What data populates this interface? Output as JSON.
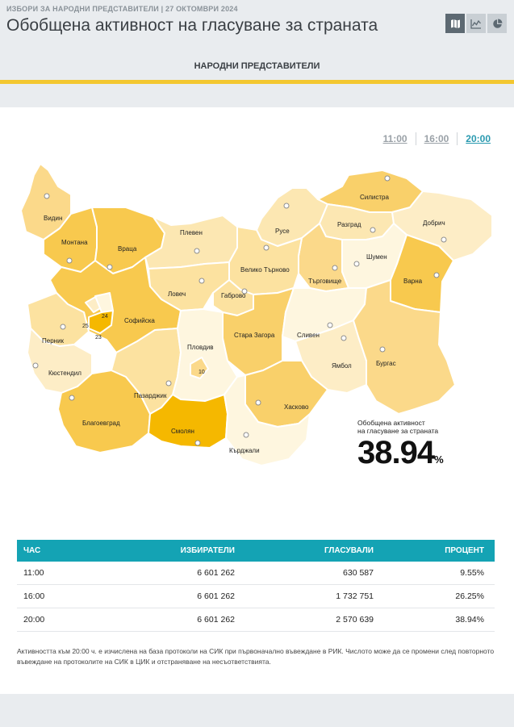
{
  "header": {
    "kicker": "ИЗБОРИ ЗА НАРОДНИ ПРЕДСТАВИТЕЛИ | 27 ОКТОМВРИ 2024",
    "title": "Обобщена активност на гласуване за страната",
    "subnav": "НАРОДНИ ПРЕДСТАВИТЕЛИ",
    "views": [
      "map-icon",
      "line-chart-icon",
      "pie-chart-icon"
    ]
  },
  "time_tabs": [
    "11:00",
    "16:00",
    "20:00"
  ],
  "active_tab": "20:00",
  "map": {
    "regions": [
      {
        "name": "Видин",
        "color": "#fbd98a"
      },
      {
        "name": "Монтана",
        "color": "#f8c94e"
      },
      {
        "name": "Враца",
        "color": "#f8c94e"
      },
      {
        "name": "Плевен",
        "color": "#fce7b2"
      },
      {
        "name": "Русе",
        "color": "#fce7b2"
      },
      {
        "name": "Силистра",
        "color": "#f9d06a"
      },
      {
        "name": "Разград",
        "color": "#fce7b2"
      },
      {
        "name": "Добрич",
        "color": "#fdedc6"
      },
      {
        "name": "Шумен",
        "color": "#fef6df"
      },
      {
        "name": "Варна",
        "color": "#f8c94e"
      },
      {
        "name": "Търговище",
        "color": "#fbd98a"
      },
      {
        "name": "Велико Търново",
        "color": "#fce2a0"
      },
      {
        "name": "Ловеч",
        "color": "#fce2a0"
      },
      {
        "name": "Габрово",
        "color": "#fce2a0"
      },
      {
        "name": "Софийска",
        "color": "#f8c94e"
      },
      {
        "name": "Перник",
        "color": "#fce2a0"
      },
      {
        "name": "Кюстендил",
        "color": "#fdedc6"
      },
      {
        "name": "Благоевград",
        "color": "#f8c94e"
      },
      {
        "name": "Пазарджик",
        "color": "#fce2a0"
      },
      {
        "name": "Пловдив",
        "color": "#fef6df"
      },
      {
        "name": "Стара Загора",
        "color": "#f9d06a"
      },
      {
        "name": "Сливен",
        "color": "#fef6df"
      },
      {
        "name": "Ямбол",
        "color": "#fdedc6"
      },
      {
        "name": "Бургас",
        "color": "#fbd98a"
      },
      {
        "name": "Хасково",
        "color": "#f9d06a"
      },
      {
        "name": "Смолян",
        "color": "#f5b800"
      },
      {
        "name": "Кърджали",
        "color": "#fef6df"
      }
    ],
    "city_labels": [
      "25",
      "24",
      "23",
      "10"
    ]
  },
  "summary": {
    "label_line1": "Обобщена активност",
    "label_line2": "на гласуване за страната",
    "value": "38.94",
    "unit": "%"
  },
  "table": {
    "headers": [
      "ЧАС",
      "ИЗБИРАТЕЛИ",
      "ГЛАСУВАЛИ",
      "ПРОЦЕНТ"
    ],
    "rows": [
      [
        "11:00",
        "6 601 262",
        "630 587",
        "9.55%"
      ],
      [
        "16:00",
        "6 601 262",
        "1 732 751",
        "26.25%"
      ],
      [
        "20:00",
        "6 601 262",
        "2 570 639",
        "38.94%"
      ]
    ]
  },
  "footnote": "Активността към 20:00 ч. е изчислена на база протоколи на СИК при първоначално въвеждане в РИК. Числото може да се промени след повторното въвеждане на протоколите на СИК в ЦИК и отстраняване на несъответствията."
}
